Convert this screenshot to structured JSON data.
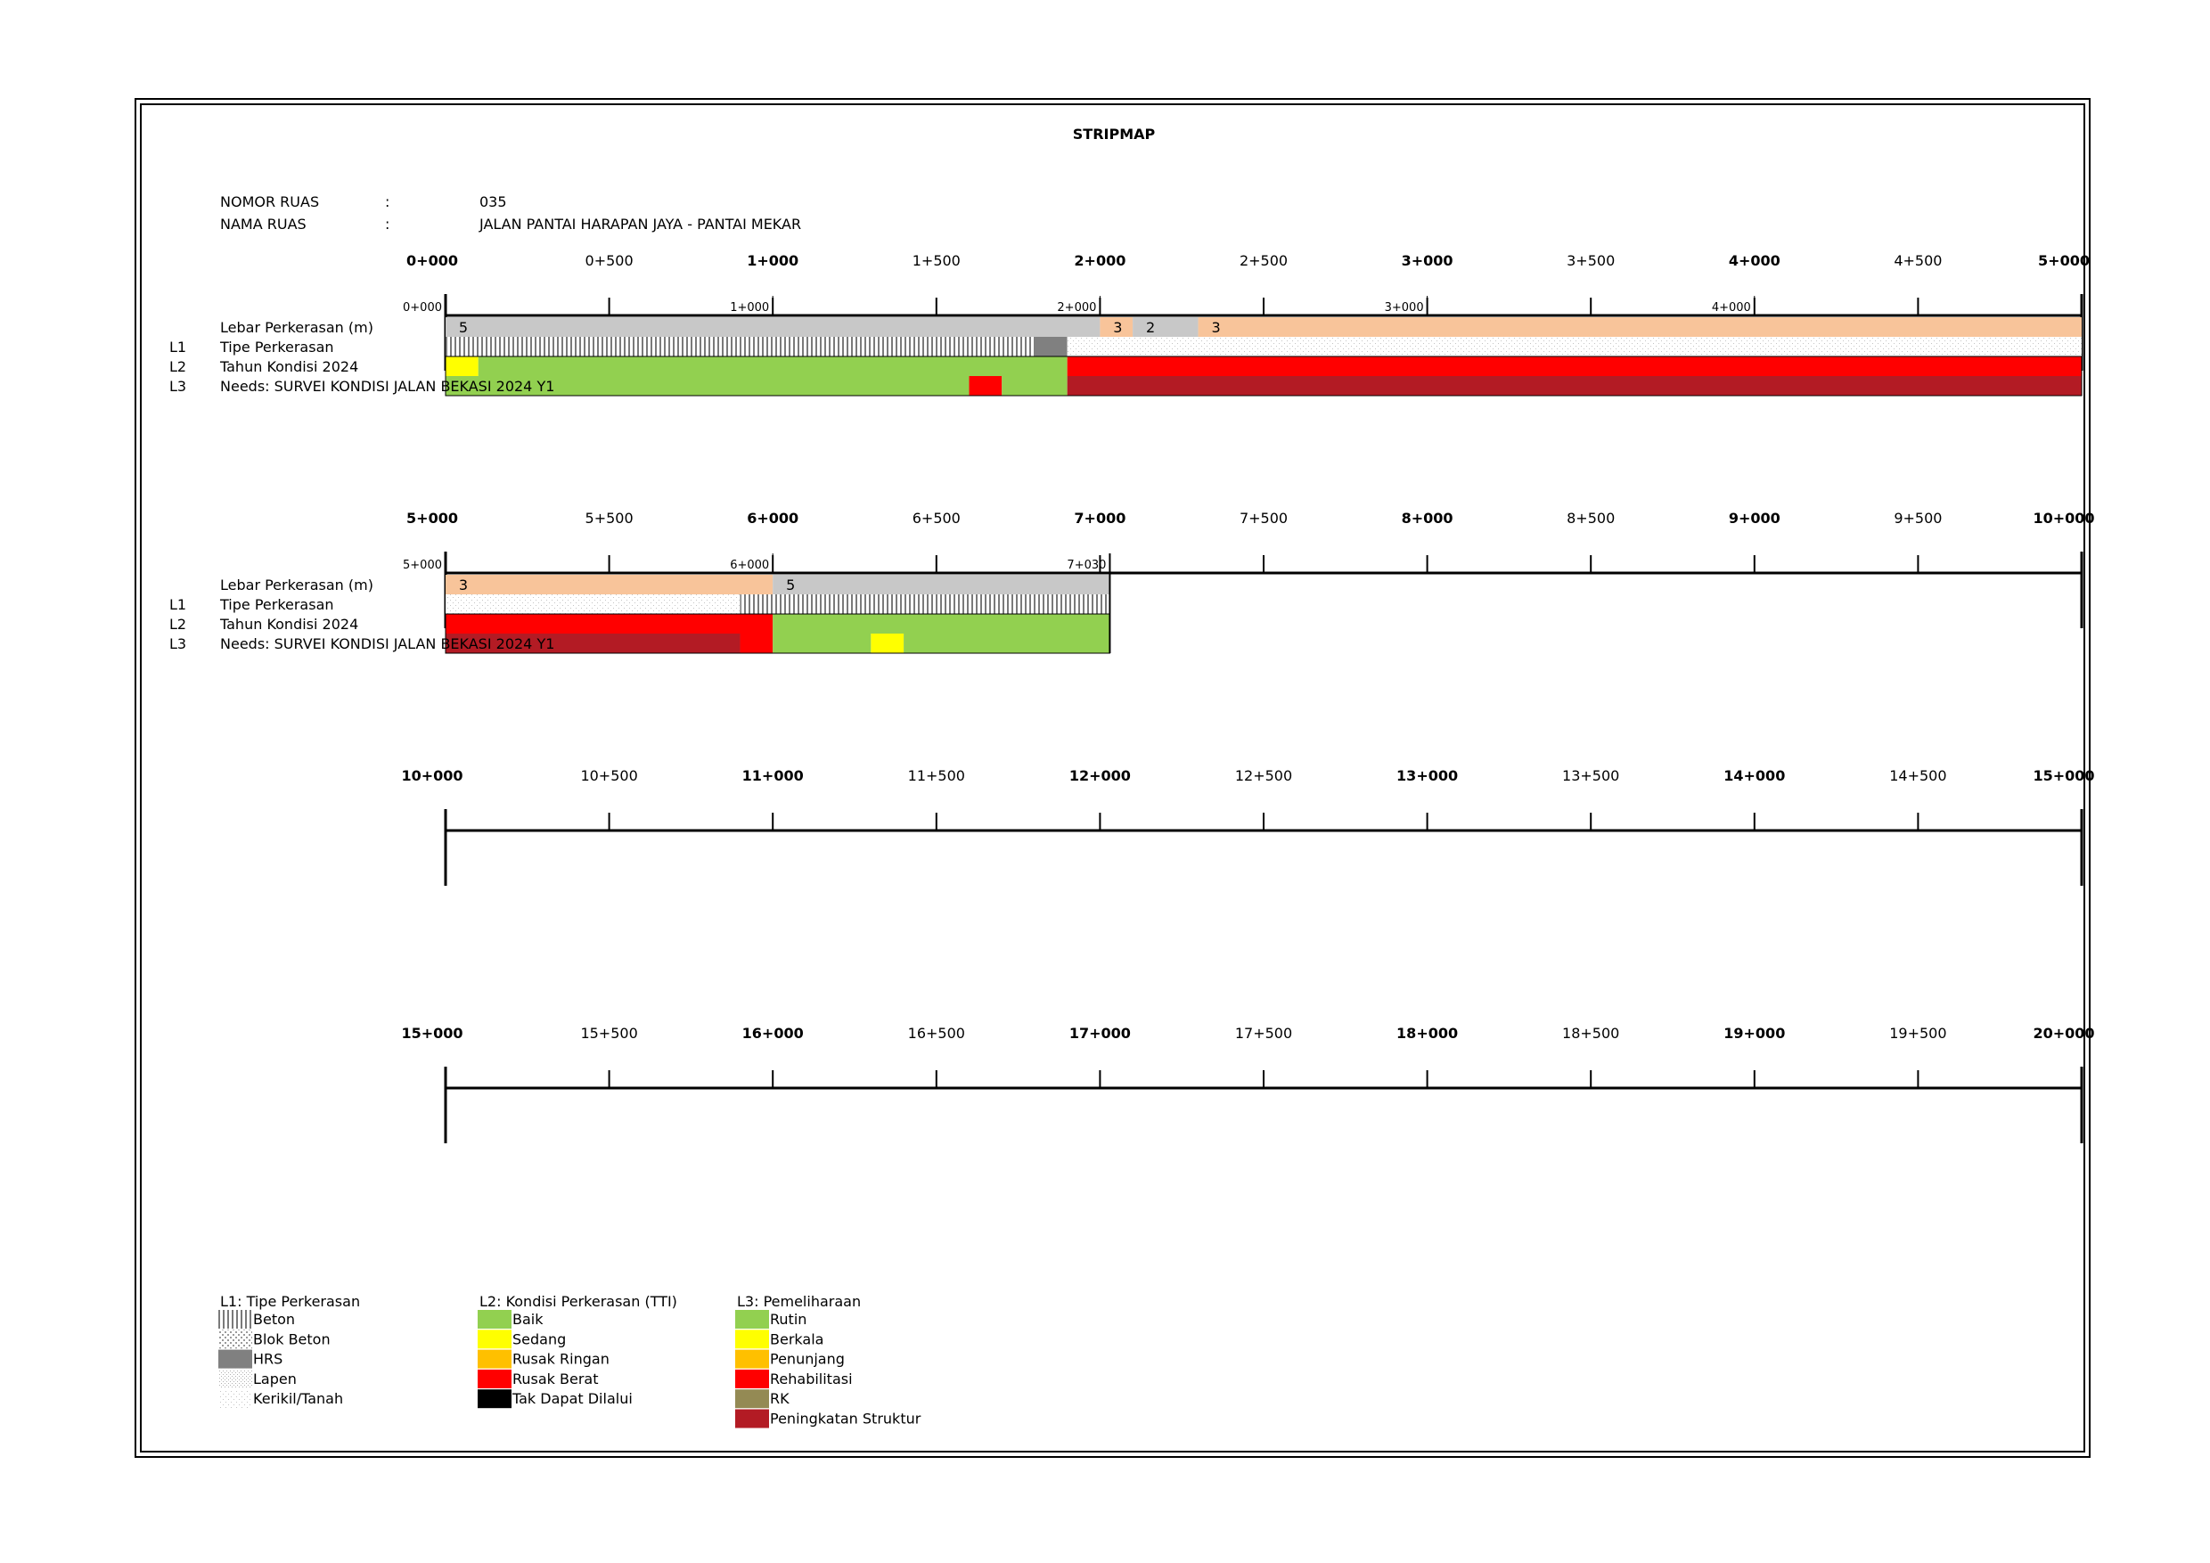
{
  "title": "STRIPMAP",
  "info": {
    "nomor_ruas_label": "NOMOR RUAS",
    "nomor_ruas_value": "035",
    "nama_ruas_label": "NAMA RUAS",
    "nama_ruas_value": "JALAN PANTAI HARAPAN JAYA - PANTAI MEKAR",
    "separator": ":"
  },
  "layer_labels": {
    "width": "Lebar Perkerasan (m)",
    "l1_code": "L1",
    "l1": "Tipe Perkerasan",
    "l2_code": "L2",
    "l2": "Tahun Kondisi 2024",
    "l3_code": "L3",
    "l3": "Needs: SURVEI KONDISI JALAN BEKASI 2024 Y1"
  },
  "colors": {
    "baik": "#92d050",
    "sedang": "#ffff00",
    "rusak_ringan": "#ffc000",
    "rusak_berat": "#ff0000",
    "tak_dapat_dilalui": "#000000",
    "rutin": "#92d050",
    "berkala": "#ffff00",
    "penunjang": "#ffc000",
    "rehabilitasi": "#ff0000",
    "rk": "#948a54",
    "peningkatan_struktur": "#b31b24",
    "width_gray": "#c8c8c8",
    "width_peach": "#f8c49a",
    "hrs": "#808080"
  },
  "chart_data": {
    "type": "stripmap",
    "unit": "km",
    "panels": [
      {
        "range": [
          0,
          5
        ],
        "major_ticks": [
          "0+000",
          "1+000",
          "2+000",
          "3+000",
          "4+000",
          "5+000"
        ],
        "minor_ticks": [
          "0+500",
          "1+500",
          "2+500",
          "3+500",
          "4+500"
        ],
        "has_data": true,
        "segment_ticks": [
          {
            "pos": 0,
            "label": "0+000"
          },
          {
            "pos": 1,
            "label": "1+000"
          },
          {
            "pos": 2,
            "label": "2+000"
          },
          {
            "pos": 3,
            "label": "3+000"
          },
          {
            "pos": 4,
            "label": "4+000"
          }
        ],
        "width": [
          {
            "from": 0,
            "to": 2.0,
            "value": "5",
            "color": "width_gray"
          },
          {
            "from": 2.0,
            "to": 2.1,
            "value": "3",
            "color": "width_peach"
          },
          {
            "from": 2.1,
            "to": 2.3,
            "value": "2",
            "color": "width_gray"
          },
          {
            "from": 2.3,
            "to": 5.0,
            "value": "3",
            "color": "width_peach"
          }
        ],
        "l1": [
          {
            "from": 0,
            "to": 1.8,
            "type": "Beton"
          },
          {
            "from": 1.8,
            "to": 1.9,
            "type": "HRS"
          },
          {
            "from": 1.9,
            "to": 5.0,
            "type": "Kerikil/Tanah"
          }
        ],
        "l2": [
          {
            "from": 0,
            "to": 0.1,
            "cond": "Sedang"
          },
          {
            "from": 0.1,
            "to": 1.9,
            "cond": "Baik"
          },
          {
            "from": 1.9,
            "to": 5.0,
            "cond": "Rusak Berat"
          }
        ],
        "l3": [
          {
            "from": 0,
            "to": 1.6,
            "need": "Rutin"
          },
          {
            "from": 1.6,
            "to": 1.7,
            "need": "Rehabilitasi"
          },
          {
            "from": 1.7,
            "to": 1.9,
            "need": "Rutin"
          },
          {
            "from": 1.9,
            "to": 5.0,
            "need": "Peningkatan Struktur"
          }
        ]
      },
      {
        "range": [
          5,
          10
        ],
        "major_ticks": [
          "5+000",
          "6+000",
          "7+000",
          "8+000",
          "9+000",
          "10+000"
        ],
        "minor_ticks": [
          "5+500",
          "6+500",
          "7+500",
          "8+500",
          "9+500"
        ],
        "has_data": true,
        "data_end": 7.03,
        "segment_ticks": [
          {
            "pos": 5,
            "label": "5+000"
          },
          {
            "pos": 6,
            "label": "6+000"
          },
          {
            "pos": 7.03,
            "label": "7+030"
          }
        ],
        "width": [
          {
            "from": 5.0,
            "to": 6.0,
            "value": "3",
            "color": "width_peach"
          },
          {
            "from": 6.0,
            "to": 7.03,
            "value": "5",
            "color": "width_gray"
          }
        ],
        "l1": [
          {
            "from": 5.0,
            "to": 5.9,
            "type": "Kerikil/Tanah"
          },
          {
            "from": 5.9,
            "to": 7.03,
            "type": "Beton"
          }
        ],
        "l2": [
          {
            "from": 5.0,
            "to": 6.0,
            "cond": "Rusak Berat"
          },
          {
            "from": 6.0,
            "to": 7.03,
            "cond": "Baik"
          }
        ],
        "l3": [
          {
            "from": 5.0,
            "to": 5.9,
            "need": "Peningkatan Struktur"
          },
          {
            "from": 5.9,
            "to": 6.0,
            "need": "Rehabilitasi"
          },
          {
            "from": 6.0,
            "to": 6.3,
            "need": "Rutin"
          },
          {
            "from": 6.3,
            "to": 6.4,
            "need": "Berkala"
          },
          {
            "from": 6.4,
            "to": 7.03,
            "need": "Rutin"
          }
        ]
      },
      {
        "range": [
          10,
          15
        ],
        "major_ticks": [
          "10+000",
          "11+000",
          "12+000",
          "13+000",
          "14+000",
          "15+000"
        ],
        "minor_ticks": [
          "10+500",
          "11+500",
          "12+500",
          "13+500",
          "14+500"
        ],
        "has_data": false
      },
      {
        "range": [
          15,
          20
        ],
        "major_ticks": [
          "15+000",
          "16+000",
          "17+000",
          "18+000",
          "19+000",
          "20+000"
        ],
        "minor_ticks": [
          "15+500",
          "16+500",
          "17+500",
          "18+500",
          "19+500"
        ],
        "has_data": false
      }
    ]
  },
  "legend": {
    "l1": {
      "title": "L1: Tipe Perkerasan",
      "items": [
        {
          "label": "Beton",
          "pattern": "beton"
        },
        {
          "label": "Blok Beton",
          "pattern": "blok"
        },
        {
          "label": "HRS",
          "pattern": "hrs"
        },
        {
          "label": "Lapen",
          "pattern": "lapen"
        },
        {
          "label": "Kerikil/Tanah",
          "pattern": "kerikil"
        }
      ]
    },
    "l2": {
      "title": "L2: Kondisi Perkerasan (TTI)",
      "items": [
        {
          "label": "Baik",
          "color": "#92d050"
        },
        {
          "label": "Sedang",
          "color": "#ffff00"
        },
        {
          "label": "Rusak Ringan",
          "color": "#ffc000"
        },
        {
          "label": "Rusak Berat",
          "color": "#ff0000"
        },
        {
          "label": "Tak Dapat Dilalui",
          "color": "#000000"
        }
      ]
    },
    "l3": {
      "title": "L3: Pemeliharaan",
      "items": [
        {
          "label": "Rutin",
          "color": "#92d050"
        },
        {
          "label": "Berkala",
          "color": "#ffff00"
        },
        {
          "label": "Penunjang",
          "color": "#ffc000"
        },
        {
          "label": "Rehabilitasi",
          "color": "#ff0000"
        },
        {
          "label": "RK",
          "color": "#948a54"
        },
        {
          "label": "Peningkatan Struktur",
          "color": "#b31b24"
        }
      ]
    }
  }
}
